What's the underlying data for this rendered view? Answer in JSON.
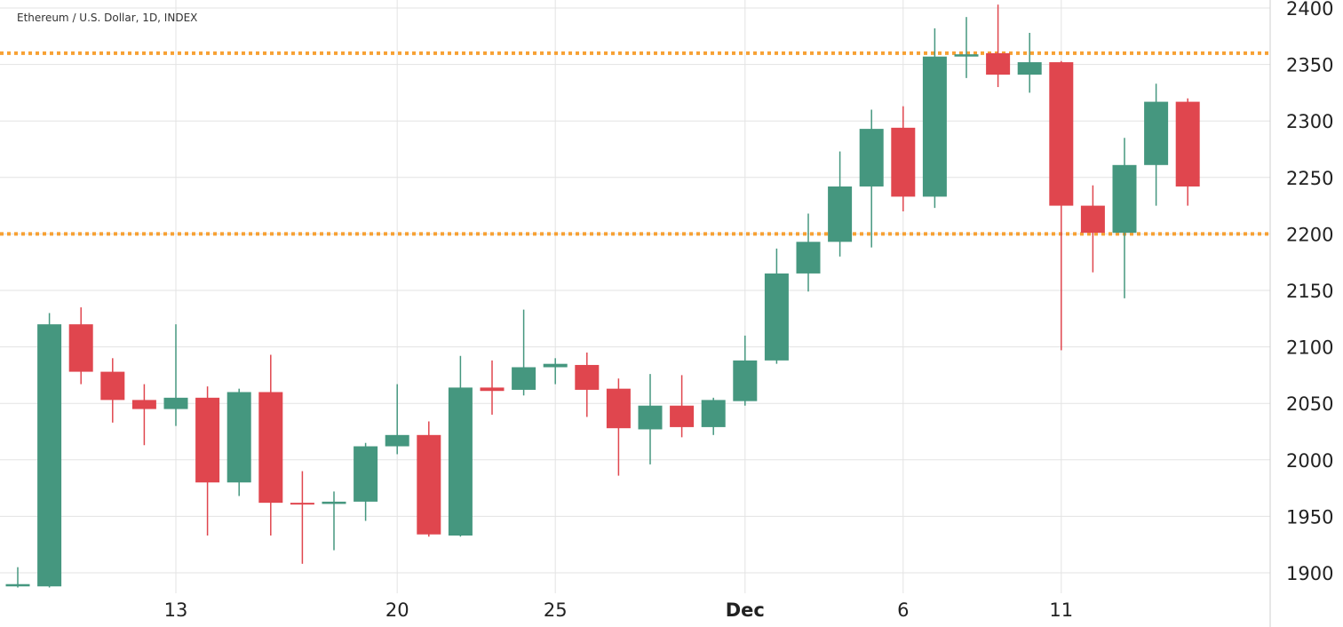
{
  "chart_data": {
    "type": "candlestick",
    "title": "Ethereum / U.S. Dollar, 1D, INDEX",
    "ylim": [
      1875,
      2405
    ],
    "yticks": [
      1900,
      1950,
      2000,
      2050,
      2100,
      2150,
      2200,
      2250,
      2300,
      2350,
      2400
    ],
    "xticks": [
      {
        "label": "13",
        "index": 5,
        "bold": false
      },
      {
        "label": "20",
        "index": 12,
        "bold": false
      },
      {
        "label": "25",
        "index": 17,
        "bold": false
      },
      {
        "label": "Dec",
        "index": 23,
        "bold": true
      },
      {
        "label": "6",
        "index": 28,
        "bold": false
      },
      {
        "label": "11",
        "index": 33,
        "bold": false
      }
    ],
    "horizontal_lines": [
      {
        "value": 2360,
        "style": "dotted",
        "color": "#f7a134"
      },
      {
        "value": 2200,
        "style": "dotted",
        "color": "#f7a134"
      }
    ],
    "up_color": "#45977f",
    "down_color": "#e0464e",
    "grid": true,
    "candles": [
      {
        "o": 1888,
        "h": 1905,
        "l": 1887,
        "c": 1890
      },
      {
        "o": 1888,
        "h": 2130,
        "l": 1887,
        "c": 2120
      },
      {
        "o": 2120,
        "h": 2135,
        "l": 2067,
        "c": 2078
      },
      {
        "o": 2078,
        "h": 2090,
        "l": 2033,
        "c": 2053
      },
      {
        "o": 2053,
        "h": 2067,
        "l": 2013,
        "c": 2045
      },
      {
        "o": 2045,
        "h": 2120,
        "l": 2030,
        "c": 2055
      },
      {
        "o": 2055,
        "h": 2065,
        "l": 1933,
        "c": 1980
      },
      {
        "o": 1980,
        "h": 2063,
        "l": 1968,
        "c": 2060
      },
      {
        "o": 2060,
        "h": 2093,
        "l": 1933,
        "c": 1962
      },
      {
        "o": 1962,
        "h": 1990,
        "l": 1908,
        "c": 1961
      },
      {
        "o": 1961,
        "h": 1972,
        "l": 1920,
        "c": 1963
      },
      {
        "o": 1963,
        "h": 2015,
        "l": 1946,
        "c": 2012
      },
      {
        "o": 2012,
        "h": 2067,
        "l": 2005,
        "c": 2022
      },
      {
        "o": 2022,
        "h": 2034,
        "l": 1932,
        "c": 1934
      },
      {
        "o": 1933,
        "h": 2092,
        "l": 1932,
        "c": 2064
      },
      {
        "o": 2064,
        "h": 2088,
        "l": 2040,
        "c": 2061
      },
      {
        "o": 2062,
        "h": 2133,
        "l": 2057,
        "c": 2082
      },
      {
        "o": 2082,
        "h": 2090,
        "l": 2067,
        "c": 2085
      },
      {
        "o": 2084,
        "h": 2095,
        "l": 2038,
        "c": 2062
      },
      {
        "o": 2063,
        "h": 2072,
        "l": 1986,
        "c": 2028
      },
      {
        "o": 2027,
        "h": 2076,
        "l": 1996,
        "c": 2048
      },
      {
        "o": 2048,
        "h": 2075,
        "l": 2020,
        "c": 2029
      },
      {
        "o": 2029,
        "h": 2055,
        "l": 2022,
        "c": 2053
      },
      {
        "o": 2052,
        "h": 2110,
        "l": 2048,
        "c": 2088
      },
      {
        "o": 2088,
        "h": 2187,
        "l": 2085,
        "c": 2165
      },
      {
        "o": 2165,
        "h": 2218,
        "l": 2149,
        "c": 2193
      },
      {
        "o": 2193,
        "h": 2273,
        "l": 2180,
        "c": 2242
      },
      {
        "o": 2242,
        "h": 2310,
        "l": 2188,
        "c": 2293
      },
      {
        "o": 2294,
        "h": 2313,
        "l": 2220,
        "c": 2233
      },
      {
        "o": 2233,
        "h": 2382,
        "l": 2223,
        "c": 2357
      },
      {
        "o": 2357,
        "h": 2392,
        "l": 2338,
        "c": 2359
      },
      {
        "o": 2360,
        "h": 2403,
        "l": 2330,
        "c": 2341
      },
      {
        "o": 2341,
        "h": 2378,
        "l": 2325,
        "c": 2352
      },
      {
        "o": 2352,
        "h": 2353,
        "l": 2097,
        "c": 2225
      },
      {
        "o": 2225,
        "h": 2243,
        "l": 2166,
        "c": 2201
      },
      {
        "o": 2201,
        "h": 2285,
        "l": 2143,
        "c": 2261
      },
      {
        "o": 2261,
        "h": 2333,
        "l": 2225,
        "c": 2317
      },
      {
        "o": 2317,
        "h": 2320,
        "l": 2225,
        "c": 2242
      }
    ]
  }
}
